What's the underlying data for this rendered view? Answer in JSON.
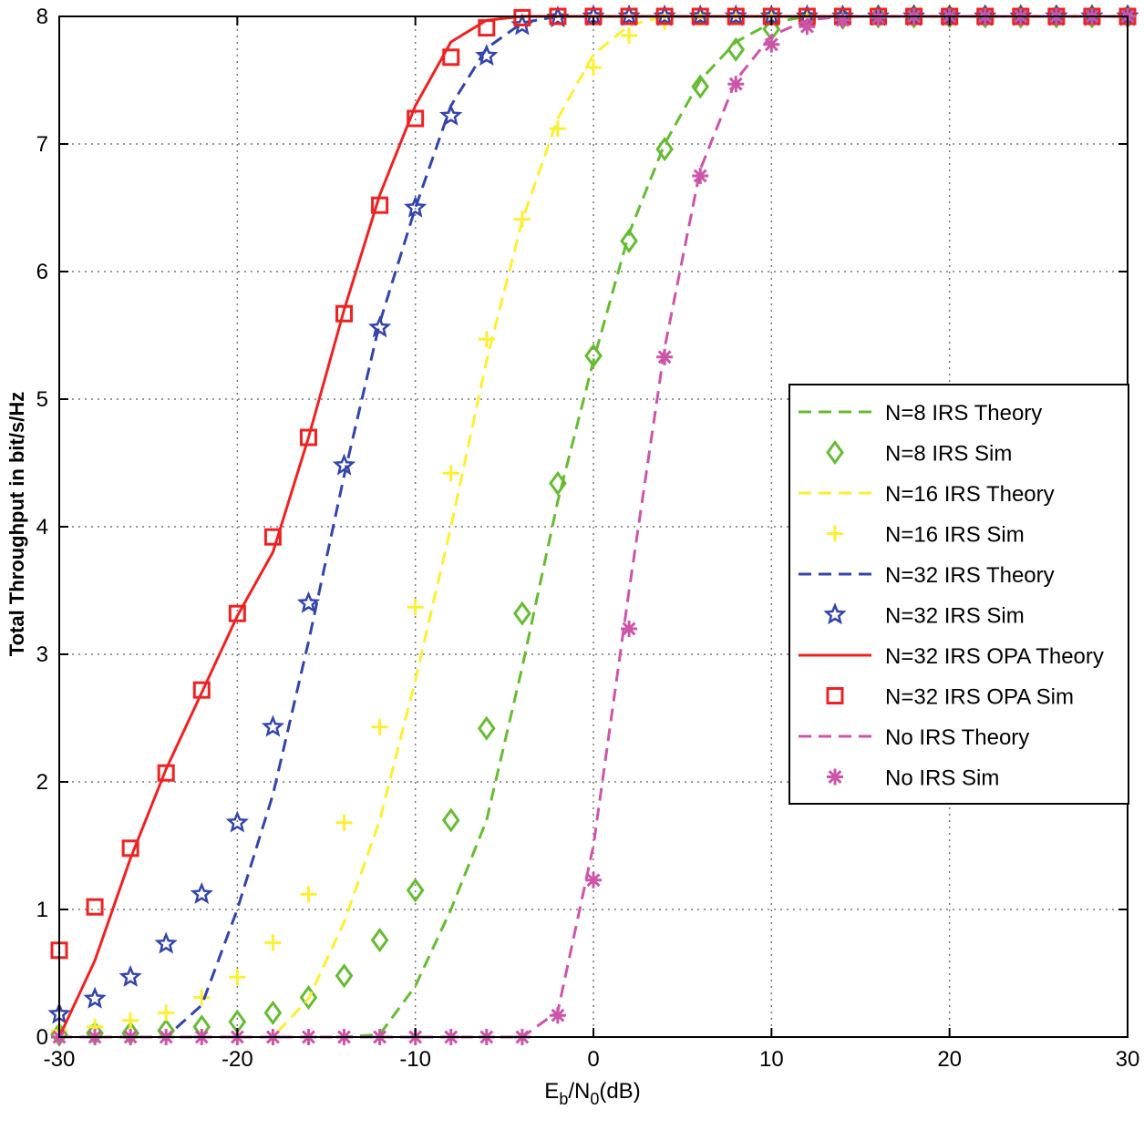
{
  "chart_data": {
    "type": "line",
    "xlabel": {
      "main": "E",
      "sub1": "b",
      "mid": "/N",
      "sub2": "0",
      "tail": "(dB)"
    },
    "ylabel": "Total Throughput in bit/s/Hz",
    "xlim": [
      -30,
      30
    ],
    "ylim": [
      0,
      8
    ],
    "xticks": [
      -30,
      -20,
      -10,
      0,
      10,
      20,
      30
    ],
    "yticks": [
      0,
      1,
      2,
      3,
      4,
      5,
      6,
      7,
      8
    ],
    "xtick_labels": [
      "-30",
      "-20",
      "-10",
      "0",
      "10",
      "20",
      "30"
    ],
    "ytick_labels": [
      "0",
      "1",
      "2",
      "3",
      "4",
      "5",
      "6",
      "7",
      "8"
    ],
    "grid": true,
    "legend_position": "right",
    "series": [
      {
        "name": "N=8 IRS Theory",
        "kind": "line",
        "style": "dashed",
        "color": "#66bb33",
        "x": [
          -30,
          -14,
          -12,
          -10,
          -8,
          -6,
          -4,
          -2,
          0,
          2,
          4,
          6,
          8,
          10,
          12,
          14,
          30
        ],
        "y": [
          0,
          0,
          0.02,
          0.4,
          1.0,
          1.7,
          2.9,
          4.2,
          5.3,
          6.3,
          7.0,
          7.5,
          7.8,
          7.95,
          8,
          8,
          8
        ]
      },
      {
        "name": "N=8 IRS Sim",
        "kind": "marker",
        "marker": "diamond",
        "color": "#66bb33",
        "x": [
          -30,
          -28,
          -26,
          -24,
          -22,
          -20,
          -18,
          -16,
          -14,
          -12,
          -10,
          -8,
          -6,
          -4,
          -2,
          0,
          2,
          4,
          6,
          8,
          10,
          12,
          14,
          16,
          18,
          20,
          22,
          24,
          26,
          28,
          30
        ],
        "y": [
          0.02,
          0.03,
          0.03,
          0.05,
          0.08,
          0.12,
          0.19,
          0.31,
          0.48,
          0.76,
          1.15,
          1.7,
          2.42,
          3.32,
          4.34,
          5.34,
          6.24,
          6.96,
          7.45,
          7.74,
          7.9,
          7.97,
          7.99,
          8,
          8,
          8,
          8,
          8,
          8,
          8,
          8
        ]
      },
      {
        "name": "N=16 IRS Theory",
        "kind": "line",
        "style": "dashed",
        "color": "#ffee33",
        "x": [
          -30,
          -18,
          -16,
          -14,
          -12,
          -10,
          -8,
          -6,
          -4,
          -2,
          0,
          2,
          4,
          6,
          30
        ],
        "y": [
          0,
          0,
          0.3,
          0.9,
          1.7,
          2.8,
          4.0,
          5.3,
          6.4,
          7.2,
          7.7,
          7.93,
          8,
          8,
          8
        ]
      },
      {
        "name": "N=16 IRS Sim",
        "kind": "marker",
        "marker": "plus",
        "color": "#ffee33",
        "x": [
          -30,
          -28,
          -26,
          -24,
          -22,
          -20,
          -18,
          -16,
          -14,
          -12,
          -10,
          -8,
          -6,
          -4,
          -2,
          0,
          2,
          4,
          6,
          8,
          10,
          12,
          14,
          16,
          18,
          20,
          22,
          24,
          26,
          28,
          30
        ],
        "y": [
          0.05,
          0.08,
          0.13,
          0.19,
          0.31,
          0.47,
          0.74,
          1.12,
          1.68,
          2.43,
          3.37,
          4.42,
          5.47,
          6.41,
          7.12,
          7.6,
          7.85,
          7.96,
          7.99,
          8,
          8,
          8,
          8,
          8,
          8,
          8,
          8,
          8,
          8,
          8,
          8
        ]
      },
      {
        "name": "N=32 IRS Theory",
        "kind": "line",
        "style": "dashed",
        "color": "#3344aa",
        "x": [
          -30,
          -24,
          -22,
          -20,
          -18,
          -16,
          -14,
          -12,
          -10,
          -8,
          -6,
          -4,
          -2,
          30
        ],
        "y": [
          0,
          0,
          0.25,
          1.0,
          1.9,
          3.1,
          4.4,
          5.6,
          6.5,
          7.3,
          7.75,
          7.95,
          8,
          8
        ]
      },
      {
        "name": "N=32 IRS Sim",
        "kind": "marker",
        "marker": "star",
        "color": "#3344aa",
        "x": [
          -30,
          -28,
          -26,
          -24,
          -22,
          -20,
          -18,
          -16,
          -14,
          -12,
          -10,
          -8,
          -6,
          -4,
          -2,
          0,
          2,
          4,
          6,
          8,
          10,
          12,
          14,
          16,
          18,
          20,
          22,
          24,
          26,
          28,
          30
        ],
        "y": [
          0.18,
          0.3,
          0.47,
          0.73,
          1.12,
          1.68,
          2.43,
          3.4,
          4.48,
          5.56,
          6.5,
          7.22,
          7.69,
          7.93,
          7.99,
          8,
          8,
          8,
          8,
          8,
          8,
          8,
          8,
          8,
          8,
          8,
          8,
          8,
          8,
          8,
          8
        ]
      },
      {
        "name": "N=32 IRS OPA Theory",
        "kind": "line",
        "style": "solid",
        "color": "#ee2222",
        "x": [
          -30,
          -28,
          -26,
          -24,
          -22,
          -20,
          -18,
          -16,
          -14,
          -12,
          -10,
          -8,
          -6,
          -4,
          -2,
          30
        ],
        "y": [
          0,
          0.6,
          1.4,
          2.1,
          2.7,
          3.3,
          3.8,
          4.7,
          5.7,
          6.6,
          7.3,
          7.8,
          7.97,
          8,
          8,
          8
        ]
      },
      {
        "name": "N=32 IRS OPA Sim",
        "kind": "marker",
        "marker": "square",
        "color": "#ee2222",
        "x": [
          -30,
          -28,
          -26,
          -24,
          -22,
          -20,
          -18,
          -16,
          -14,
          -12,
          -10,
          -8,
          -6,
          -4,
          -2,
          0,
          2,
          4,
          6,
          8,
          10,
          12,
          14,
          16,
          18,
          20,
          22,
          24,
          26,
          28,
          30
        ],
        "y": [
          0.68,
          1.02,
          1.48,
          2.07,
          2.72,
          3.32,
          3.92,
          4.7,
          5.67,
          6.52,
          7.2,
          7.68,
          7.91,
          7.99,
          8,
          8,
          8,
          8,
          8,
          8,
          8,
          8,
          8,
          8,
          8,
          8,
          8,
          8,
          8,
          8,
          8
        ]
      },
      {
        "name": "No IRS Theory",
        "kind": "line",
        "style": "dashed",
        "color": "#cc55aa",
        "x": [
          -30,
          -4,
          -2,
          0,
          2,
          4,
          6,
          8,
          10,
          12,
          14,
          30
        ],
        "y": [
          0,
          0,
          0.2,
          1.5,
          3.5,
          5.4,
          6.8,
          7.5,
          7.85,
          7.97,
          8,
          8
        ]
      },
      {
        "name": "No IRS Sim",
        "kind": "marker",
        "marker": "asterisk",
        "color": "#cc55aa",
        "x": [
          -30,
          -28,
          -26,
          -24,
          -22,
          -20,
          -18,
          -16,
          -14,
          -12,
          -10,
          -8,
          -6,
          -4,
          -2,
          0,
          2,
          4,
          6,
          8,
          10,
          12,
          14,
          16,
          18,
          20,
          22,
          24,
          26,
          28,
          30
        ],
        "y": [
          0,
          0,
          0,
          0,
          0,
          0,
          0,
          0,
          0,
          0,
          0,
          0,
          0,
          0,
          0.17,
          1.23,
          3.2,
          5.33,
          6.75,
          7.47,
          7.78,
          7.92,
          7.97,
          7.99,
          8,
          8,
          8,
          8,
          8,
          8,
          8
        ]
      }
    ]
  }
}
